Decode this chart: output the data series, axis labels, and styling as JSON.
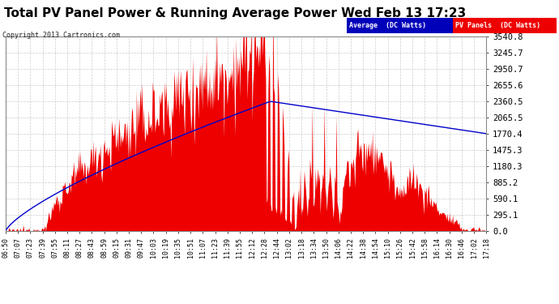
{
  "title": "Total PV Panel Power & Running Average Power Wed Feb 13 17:23",
  "copyright": "Copyright 2013 Cartronics.com",
  "legend_avg": "Average  (DC Watts)",
  "legend_pv": "PV Panels  (DC Watts)",
  "ylabel_ticks": [
    0.0,
    295.1,
    590.1,
    885.2,
    1180.3,
    1475.3,
    1770.4,
    2065.5,
    2360.5,
    2655.6,
    2950.7,
    3245.7,
    3540.8
  ],
  "ylim": [
    0,
    3540.8
  ],
  "bg_color": "#ffffff",
  "plot_bg_color": "#ffffff",
  "grid_color": "#cccccc",
  "pv_color": "#ee0000",
  "avg_color": "#0000cc",
  "title_fontsize": 11,
  "x_labels": [
    "06:50",
    "07:07",
    "07:23",
    "07:39",
    "07:55",
    "08:11",
    "08:27",
    "08:43",
    "08:59",
    "09:15",
    "09:31",
    "09:47",
    "10:03",
    "10:19",
    "10:35",
    "10:51",
    "11:07",
    "11:23",
    "11:39",
    "11:55",
    "12:12",
    "12:28",
    "12:44",
    "13:02",
    "13:18",
    "13:34",
    "13:50",
    "14:06",
    "14:22",
    "14:38",
    "14:54",
    "15:10",
    "15:26",
    "15:42",
    "15:58",
    "16:14",
    "16:30",
    "16:46",
    "17:02",
    "17:18"
  ],
  "n_points": 600
}
